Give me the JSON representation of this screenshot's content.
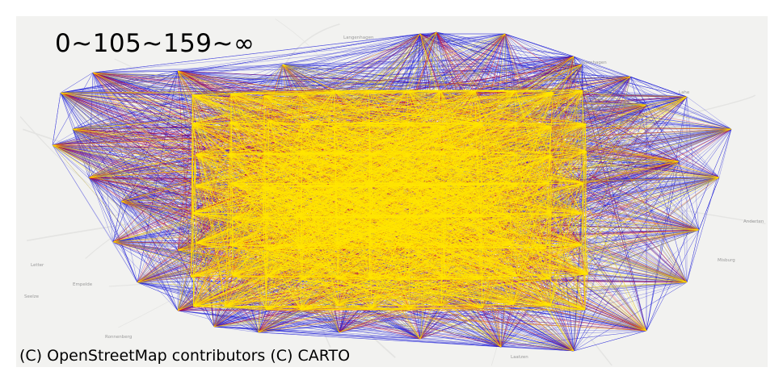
{
  "map": {
    "type": "flow-network",
    "basemap": "light-gray street map",
    "bin_legend": "0~105~159~∞",
    "attribution": "(C) OpenStreetMap contributors (C) CARTO",
    "place_labels": [
      "Langenhagen",
      "Lahe",
      "Laatzen",
      "Ronnenberg",
      "Empelde",
      "Letter",
      "Seelze",
      "Isernhagen",
      "Misburg",
      "Anderten"
    ],
    "colors": {
      "low_bin": "#1f1fd8",
      "mid_bin": "#e0101a",
      "high_bin": "#ffe600",
      "basemap": "#f2f2f0"
    },
    "bins": [
      {
        "range": "0~105",
        "color": "blue"
      },
      {
        "range": "105~159",
        "color": "red"
      },
      {
        "range": "159~∞",
        "color": "yellow"
      }
    ]
  }
}
